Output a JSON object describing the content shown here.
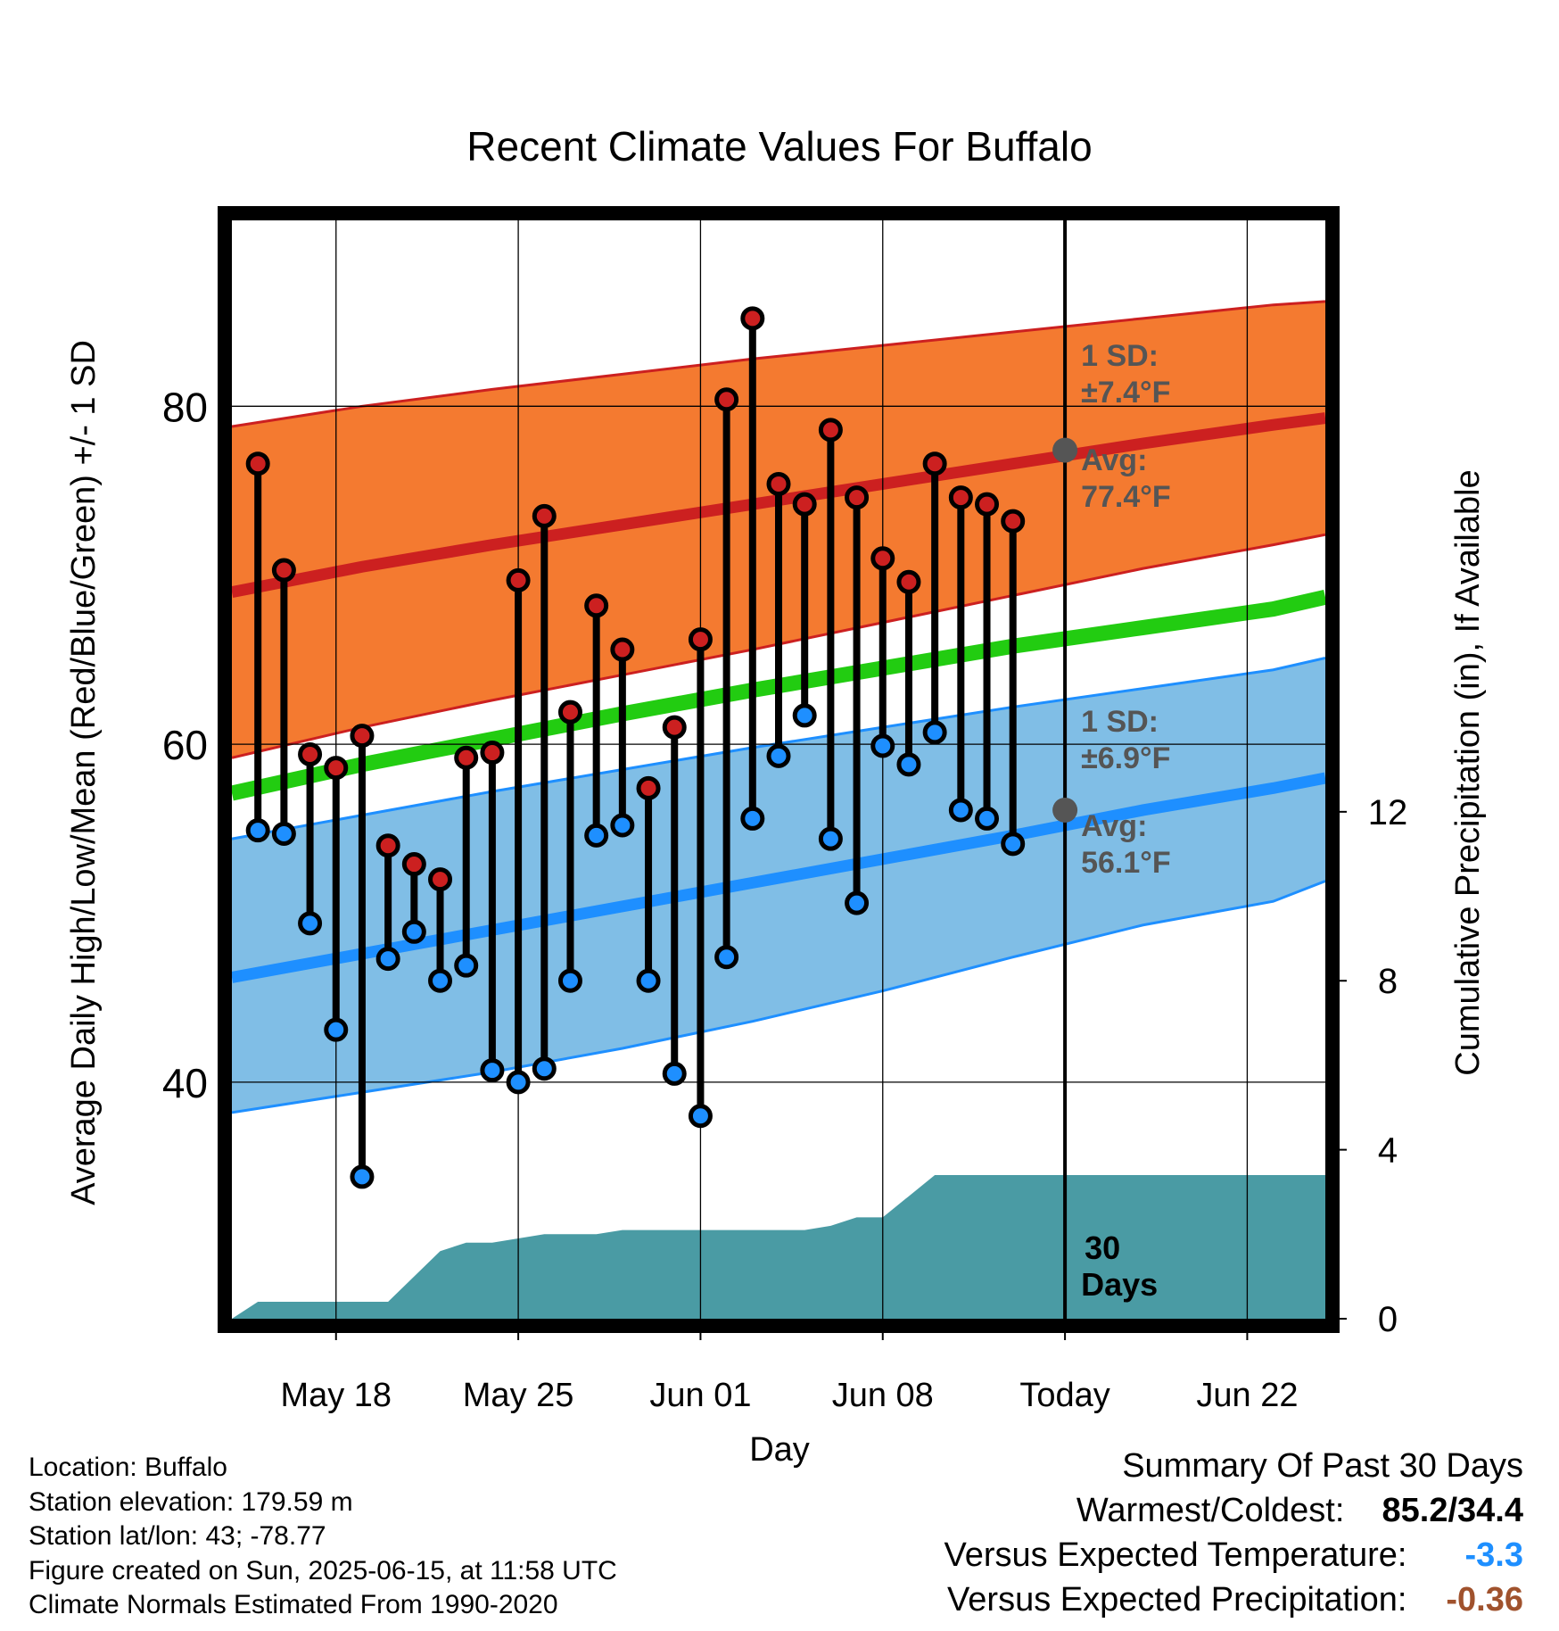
{
  "chart_data": {
    "type": "line",
    "title": "Recent Climate Values For Buffalo",
    "xlabel": "Day",
    "ylabel": "Average Daily High/Low/Mean (Red/Blue/Green) +/- 1 SD",
    "y2label": "Cumulative Precipitation (in), If Available",
    "x_range": [
      "2025-05-14",
      "2025-06-25"
    ],
    "ylim": [
      26,
      91
    ],
    "y2lim": [
      0,
      26
    ],
    "y_ticks": [
      80,
      60,
      40
    ],
    "y2_ticks": [
      12,
      8,
      4,
      0
    ],
    "x_ticks": [
      {
        "date": "2025-05-18",
        "label": "May 18"
      },
      {
        "date": "2025-05-25",
        "label": "May 25"
      },
      {
        "date": "2025-06-01",
        "label": "Jun 01"
      },
      {
        "date": "2025-06-08",
        "label": "Jun 08"
      },
      {
        "date": "2025-06-15",
        "label": "Today"
      },
      {
        "date": "2025-06-22",
        "label": "Jun 22"
      }
    ],
    "today": "2025-06-15",
    "grid": true,
    "colors": {
      "high_band": "#f47a30",
      "high_avg": "#cc2020",
      "low_band": "#80bee6",
      "low_avg": "#1e8fff",
      "mean": "#22cc11",
      "precip": "#4a9ba4",
      "high_dot": "#cc2020",
      "low_dot": "#1e8fff",
      "annotation": "#555555",
      "versus_temp": "#1e8fff",
      "versus_precip": "#a0522d"
    },
    "normals": {
      "dates": [
        "2025-05-14",
        "2025-05-19",
        "2025-05-24",
        "2025-05-29",
        "2025-06-03",
        "2025-06-08",
        "2025-06-13",
        "2025-06-18",
        "2025-06-23",
        "2025-06-25"
      ],
      "high_avg": [
        69.0,
        70.5,
        71.8,
        73.0,
        74.2,
        75.4,
        76.6,
        77.8,
        78.9,
        79.3
      ],
      "high_upper": [
        78.8,
        80.0,
        81.0,
        81.9,
        82.8,
        83.6,
        84.4,
        85.2,
        86.0,
        86.2
      ],
      "high_lower": [
        59.2,
        61.0,
        62.6,
        64.1,
        65.6,
        67.2,
        68.8,
        70.4,
        71.8,
        72.4
      ],
      "mean": [
        57.1,
        58.8,
        60.3,
        61.8,
        63.2,
        64.5,
        65.8,
        66.9,
        68.0,
        68.7
      ],
      "low_avg": [
        46.2,
        47.6,
        49.0,
        50.4,
        51.8,
        53.2,
        54.6,
        56.1,
        57.4,
        58.0
      ],
      "low_upper": [
        54.4,
        55.8,
        57.2,
        58.5,
        59.8,
        61.0,
        62.2,
        63.3,
        64.4,
        65.1
      ],
      "low_lower": [
        38.2,
        39.4,
        40.6,
        42.0,
        43.6,
        45.4,
        47.4,
        49.3,
        50.7,
        51.9
      ]
    },
    "series": [
      {
        "name": "High",
        "x": [
          "2025-05-15",
          "2025-05-16",
          "2025-05-17",
          "2025-05-18",
          "2025-05-19",
          "2025-05-20",
          "2025-05-21",
          "2025-05-22",
          "2025-05-23",
          "2025-05-24",
          "2025-05-25",
          "2025-05-26",
          "2025-05-27",
          "2025-05-28",
          "2025-05-29",
          "2025-05-30",
          "2025-05-31",
          "2025-06-01",
          "2025-06-02",
          "2025-06-03",
          "2025-06-04",
          "2025-06-05",
          "2025-06-06",
          "2025-06-07",
          "2025-06-08",
          "2025-06-09",
          "2025-06-10",
          "2025-06-11",
          "2025-06-12",
          "2025-06-13",
          "2025-06-14"
        ],
        "values": [
          76.6,
          70.3,
          59.4,
          58.6,
          60.5,
          54.0,
          52.9,
          52.0,
          59.2,
          59.5,
          69.7,
          73.5,
          61.9,
          68.2,
          65.6,
          57.4,
          61.0,
          66.2,
          80.4,
          85.2,
          75.4,
          74.2,
          78.6,
          74.6,
          71.0,
          69.6,
          76.6,
          74.6,
          74.2,
          73.2,
          null
        ]
      },
      {
        "name": "Low",
        "x": [
          "2025-05-15",
          "2025-05-16",
          "2025-05-17",
          "2025-05-18",
          "2025-05-19",
          "2025-05-20",
          "2025-05-21",
          "2025-05-22",
          "2025-05-23",
          "2025-05-24",
          "2025-05-25",
          "2025-05-26",
          "2025-05-27",
          "2025-05-28",
          "2025-05-29",
          "2025-05-30",
          "2025-05-31",
          "2025-06-01",
          "2025-06-02",
          "2025-06-03",
          "2025-06-04",
          "2025-06-05",
          "2025-06-06",
          "2025-06-07",
          "2025-06-08",
          "2025-06-09",
          "2025-06-10",
          "2025-06-11",
          "2025-06-12",
          "2025-06-13",
          "2025-06-14"
        ],
        "values": [
          54.9,
          54.7,
          49.4,
          43.1,
          34.4,
          47.3,
          48.9,
          46.0,
          46.9,
          40.7,
          40.0,
          40.8,
          46.0,
          54.6,
          55.2,
          46.0,
          40.5,
          38.0,
          47.4,
          55.6,
          59.3,
          61.7,
          54.4,
          50.6,
          59.9,
          58.8,
          60.7,
          56.1,
          55.6,
          54.1,
          null
        ]
      }
    ],
    "precip": {
      "x": [
        "2025-05-14",
        "2025-05-15",
        "2025-05-16",
        "2025-05-17",
        "2025-05-18",
        "2025-05-19",
        "2025-05-20",
        "2025-05-21",
        "2025-05-22",
        "2025-05-23",
        "2025-05-24",
        "2025-05-25",
        "2025-05-26",
        "2025-05-27",
        "2025-05-28",
        "2025-05-29",
        "2025-05-30",
        "2025-05-31",
        "2025-06-01",
        "2025-06-02",
        "2025-06-03",
        "2025-06-04",
        "2025-06-05",
        "2025-06-06",
        "2025-06-07",
        "2025-06-08",
        "2025-06-09",
        "2025-06-10",
        "2025-06-11",
        "2025-06-12",
        "2025-06-13",
        "2025-06-14",
        "2025-06-15",
        "2025-06-25"
      ],
      "values": [
        0.0,
        0.4,
        0.4,
        0.4,
        0.4,
        0.4,
        0.4,
        1.0,
        1.6,
        1.8,
        1.8,
        1.9,
        2.0,
        2.0,
        2.0,
        2.1,
        2.1,
        2.1,
        2.1,
        2.1,
        2.1,
        2.1,
        2.1,
        2.2,
        2.4,
        2.4,
        2.9,
        3.4,
        3.4,
        3.4,
        3.4,
        3.4,
        3.4,
        3.4
      ]
    },
    "annotations": {
      "high_sd_label": "1 SD:",
      "high_sd_value": "±7.4°F",
      "high_avg_label": "Avg:",
      "high_avg_value": "77.4°F",
      "high_avg_today": 77.4,
      "low_sd_label": "1 SD:",
      "low_sd_value": "±6.9°F",
      "low_avg_label": "Avg:",
      "low_avg_value": "56.1°F",
      "low_avg_today": 56.1,
      "days_label_1": "30",
      "days_label_2": "Days"
    }
  },
  "footer_left": {
    "location": "Location: Buffalo",
    "elevation": "Station elevation: 179.59 m",
    "latlon": "Station lat/lon: 43; -78.77",
    "created": "Figure created on Sun, 2025-06-15, at 11:58 UTC",
    "normals": "Climate Normals Estimated From 1990-2020"
  },
  "summary": {
    "title": "Summary Of Past 30 Days",
    "warm_cold_label": "Warmest/Coldest:",
    "warm_cold_value": "85.2/34.4",
    "temp_label": "Versus Expected Temperature:",
    "temp_value": "-3.3",
    "precip_label": "Versus Expected Precipitation:",
    "precip_value": "-0.36"
  }
}
